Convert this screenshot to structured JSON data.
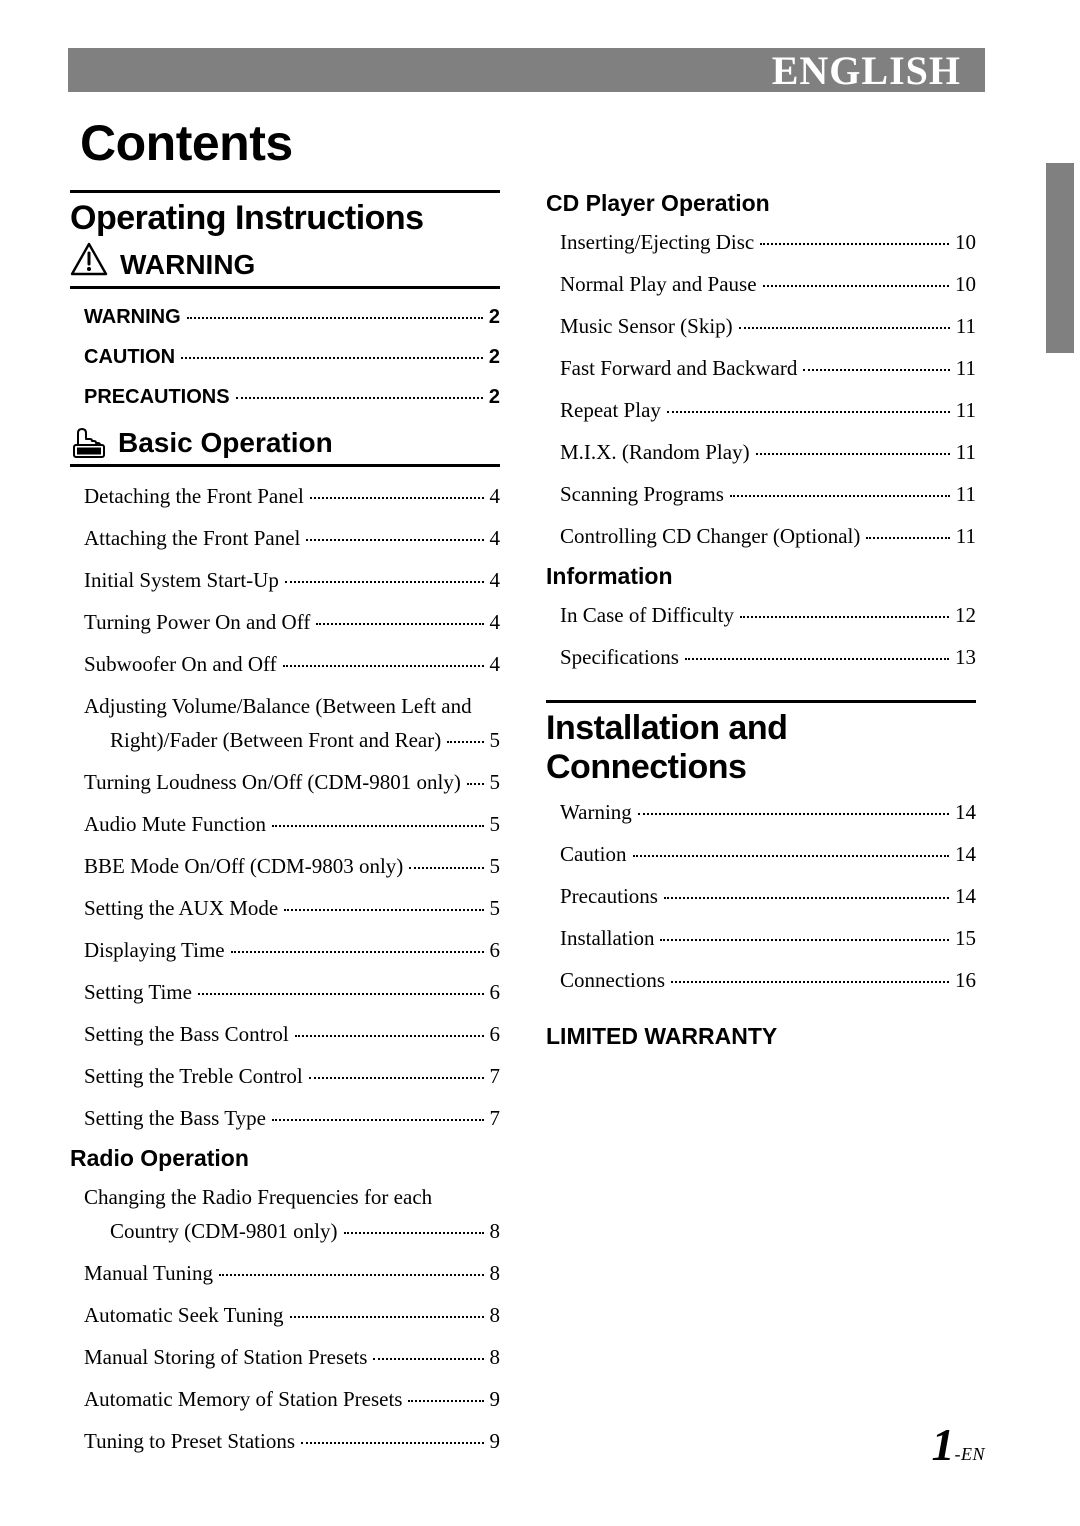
{
  "header": {
    "language": "ENGLISH"
  },
  "title": "Contents",
  "left": {
    "section": "Operating Instructions",
    "warning_heading": "WARNING",
    "warning_items": [
      {
        "label": "WARNING",
        "page": "2"
      },
      {
        "label": "CAUTION",
        "page": "2"
      },
      {
        "label": "PRECAUTIONS",
        "page": "2"
      }
    ],
    "basic_heading": "Basic Operation",
    "basic_items": [
      {
        "label": "Detaching the Front Panel",
        "page": "4"
      },
      {
        "label": "Attaching the Front Panel",
        "page": "4"
      },
      {
        "label": "Initial System Start-Up",
        "page": "4"
      },
      {
        "label": "Turning Power On and Off",
        "page": "4"
      },
      {
        "label": "Subwoofer On and Off",
        "page": "4"
      },
      {
        "label1": "Adjusting Volume/Balance (Between Left and",
        "label2": "Right)/Fader (Between Front and Rear)",
        "page": "5",
        "wrap": true
      },
      {
        "label": "Turning Loudness On/Off (CDM-9801 only)",
        "page": "5"
      },
      {
        "label": "Audio Mute Function",
        "page": "5"
      },
      {
        "label": "BBE Mode On/Off (CDM-9803 only)",
        "page": "5"
      },
      {
        "label": "Setting the AUX Mode",
        "page": "5"
      },
      {
        "label": "Displaying Time",
        "page": "6"
      },
      {
        "label": "Setting Time",
        "page": "6"
      },
      {
        "label": "Setting the Bass Control",
        "page": "6"
      },
      {
        "label": "Setting the Treble Control",
        "page": "7"
      },
      {
        "label": "Setting the Bass Type",
        "page": "7"
      }
    ],
    "radio_heading": "Radio Operation",
    "radio_items": [
      {
        "label1": "Changing the Radio Frequencies for each",
        "label2": "Country (CDM-9801 only)",
        "page": "8",
        "wrap": true
      },
      {
        "label": "Manual Tuning",
        "page": "8"
      },
      {
        "label": "Automatic Seek Tuning",
        "page": "8"
      },
      {
        "label": "Manual Storing of Station Presets",
        "page": "8"
      },
      {
        "label": "Automatic Memory of Station Presets",
        "page": "9"
      },
      {
        "label": "Tuning to Preset Stations",
        "page": "9"
      }
    ]
  },
  "right": {
    "cd_heading": "CD Player Operation",
    "cd_items": [
      {
        "label": "Inserting/Ejecting Disc",
        "page": "10"
      },
      {
        "label": "Normal Play and Pause",
        "page": "10"
      },
      {
        "label": "Music Sensor (Skip)",
        "page": "11"
      },
      {
        "label": "Fast Forward and Backward",
        "page": "11"
      },
      {
        "label": "Repeat Play",
        "page": "11"
      },
      {
        "label": "M.I.X. (Random Play)",
        "page": "11"
      },
      {
        "label": "Scanning Programs",
        "page": "11"
      },
      {
        "label": "Controlling CD Changer (Optional)",
        "page": "11"
      }
    ],
    "info_heading": "Information",
    "info_items": [
      {
        "label": "In Case of Difficulty",
        "page": "12"
      },
      {
        "label": "Specifications",
        "page": "13"
      }
    ],
    "install_section": "Installation and Connections",
    "install_items": [
      {
        "label": "Warning",
        "page": "14"
      },
      {
        "label": "Caution",
        "page": "14"
      },
      {
        "label": "Precautions",
        "page": "14"
      },
      {
        "label": "Installation",
        "page": "15"
      },
      {
        "label": "Connections",
        "page": "16"
      }
    ],
    "warranty_heading": "LIMITED WARRANTY"
  },
  "footer": {
    "page_num": "1",
    "suffix": "-EN"
  }
}
